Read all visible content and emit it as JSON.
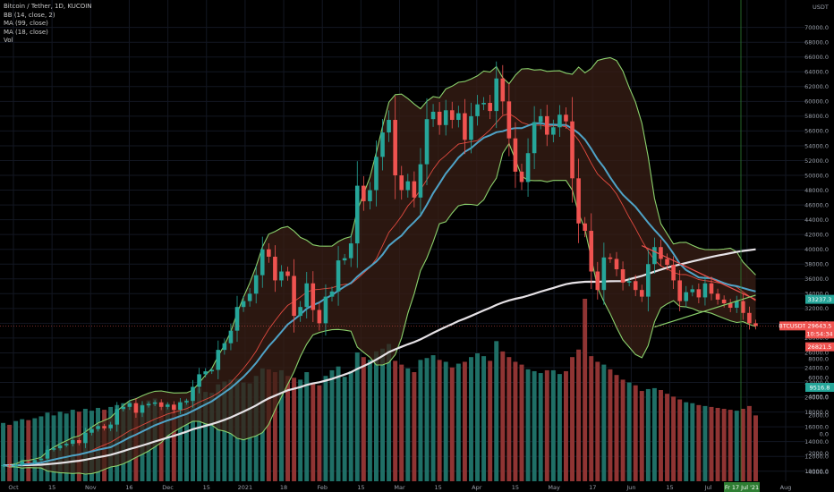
{
  "legend": {
    "symbol": "Bitcoin / Tether, 1D, KUCOIN",
    "bb": "BB (14, close, 2)",
    "ma99": "MA (99, close)",
    "ma18": "MA (18, close)",
    "vol": "Vol"
  },
  "chart_data": {
    "type": "candlestick",
    "currency": "USDT",
    "price_axis": {
      "ticks": [
        70000,
        68000,
        66000,
        64000,
        62000,
        60000,
        58000,
        56000,
        54000,
        52000,
        50000,
        48000,
        46000,
        44000,
        42000,
        40000,
        38000,
        36000,
        34000,
        32000,
        30000,
        28000,
        26000,
        24000,
        22000,
        20000,
        18000,
        16000,
        14000,
        12000,
        10000
      ],
      "ylim": [
        9000,
        72500
      ]
    },
    "volume_axis": {
      "ticks": [
        8000,
        6000,
        4000,
        2000,
        0,
        -2000,
        -4000
      ],
      "ylim": [
        -5000,
        10500
      ]
    },
    "x_axis": {
      "labels": [
        "Oct",
        "15",
        "Nov",
        "16",
        "Dec",
        "15",
        "2021",
        "18",
        "Feb",
        "15",
        "Mar",
        "15",
        "Apr",
        "15",
        "May",
        "17",
        "Jun",
        "15",
        "Jul",
        "15",
        "Aug"
      ]
    },
    "price_badges": [
      {
        "label": "33237.3",
        "value": 33237,
        "color": "#26a69a"
      },
      {
        "label": "BTCUSDT",
        "value": 29643,
        "color": "#ef5350"
      },
      {
        "label": "29643.5",
        "value": 29643,
        "color": "#ef5350"
      },
      {
        "label": "10:54:34",
        "value": 28500,
        "color": "#ef5350"
      },
      {
        "label": "26821.5",
        "value": 26821,
        "color": "#ef5350"
      }
    ],
    "volume_badge": {
      "label": "9516.8",
      "value": 9517,
      "color": "#26a69a"
    },
    "date_badge": "Fr 17 Jul '21",
    "series": [
      {
        "name": "BTCUSDT",
        "kind": "candles",
        "up_color": "#26a69a",
        "down_color": "#ef5350",
        "close": [
          10800,
          10650,
          10900,
          11300,
          11200,
          11500,
          11700,
          12900,
          13100,
          13500,
          13700,
          14200,
          13800,
          15200,
          15700,
          16100,
          15800,
          16300,
          18400,
          18700,
          19200,
          17900,
          18900,
          19100,
          19300,
          18700,
          19000,
          18300,
          19300,
          19500,
          21400,
          23100,
          23500,
          23700,
          26400,
          27300,
          29000,
          32200,
          33000,
          34000,
          36500,
          40000,
          39000,
          35800,
          37000,
          36400,
          31000,
          32200,
          35400,
          31800,
          30000,
          33600,
          34300,
          38500,
          38800,
          40800,
          48600,
          46500,
          48000,
          52500,
          55800,
          57500,
          50000,
          48000,
          49200,
          47000,
          51500,
          57600,
          58600,
          56800,
          58800,
          57500,
          58400,
          54800,
          58000,
          59600,
          59800,
          58700,
          63100,
          60000,
          55000,
          50500,
          49100,
          53000,
          57200,
          58000,
          55500,
          56500,
          58200,
          57300,
          49600,
          43500,
          42500,
          37000,
          34500,
          38900,
          38700,
          37300,
          35500,
          35700,
          34500,
          33600,
          38000,
          40300,
          38700,
          37900,
          35800,
          33000,
          34200,
          34600,
          33500,
          35400,
          34000,
          33200,
          32700,
          32100,
          33000,
          31400,
          30000,
          29643
        ],
        "volume": [
          1200,
          1000,
          1400,
          1600,
          1500,
          1700,
          1900,
          2300,
          2000,
          2400,
          2200,
          2600,
          2400,
          2700,
          2500,
          2800,
          2600,
          2900,
          3100,
          3300,
          3500,
          3000,
          3200,
          3600,
          3800,
          3400,
          3300,
          3100,
          3500,
          3700,
          4700,
          4900,
          4500,
          4400,
          5300,
          5600,
          5800,
          5900,
          5500,
          5400,
          6200,
          7000,
          6900,
          6600,
          6800,
          6200,
          6000,
          5800,
          6600,
          5400,
          5200,
          6200,
          6800,
          7200,
          6100,
          6700,
          8700,
          8200,
          7900,
          8800,
          9100,
          9600,
          7800,
          7400,
          7000,
          6600,
          7900,
          8100,
          8400,
          7900,
          7700,
          7100,
          7500,
          7700,
          8200,
          8600,
          8300,
          7800,
          9900,
          8800,
          8200,
          7700,
          7400,
          6900,
          6700,
          6500,
          6800,
          6800,
          6400,
          6700,
          8200,
          9000,
          14400,
          8300,
          7700,
          7400,
          6900,
          6300,
          5800,
          5500,
          5200,
          4600,
          4800,
          4900,
          4700,
          4300,
          4000,
          3700,
          3400,
          3300,
          3100,
          3000,
          2900,
          2800,
          2700,
          2600,
          2500,
          2700,
          3000,
          2000
        ]
      },
      {
        "name": "MA (18, close)",
        "kind": "line",
        "color": "#4fa3c7"
      },
      {
        "name": "MA (99, close)",
        "kind": "line",
        "color": "#e6e2e6"
      },
      {
        "name": "BB (14, close, 2)",
        "kind": "band",
        "color": "#8bd16c"
      }
    ]
  }
}
